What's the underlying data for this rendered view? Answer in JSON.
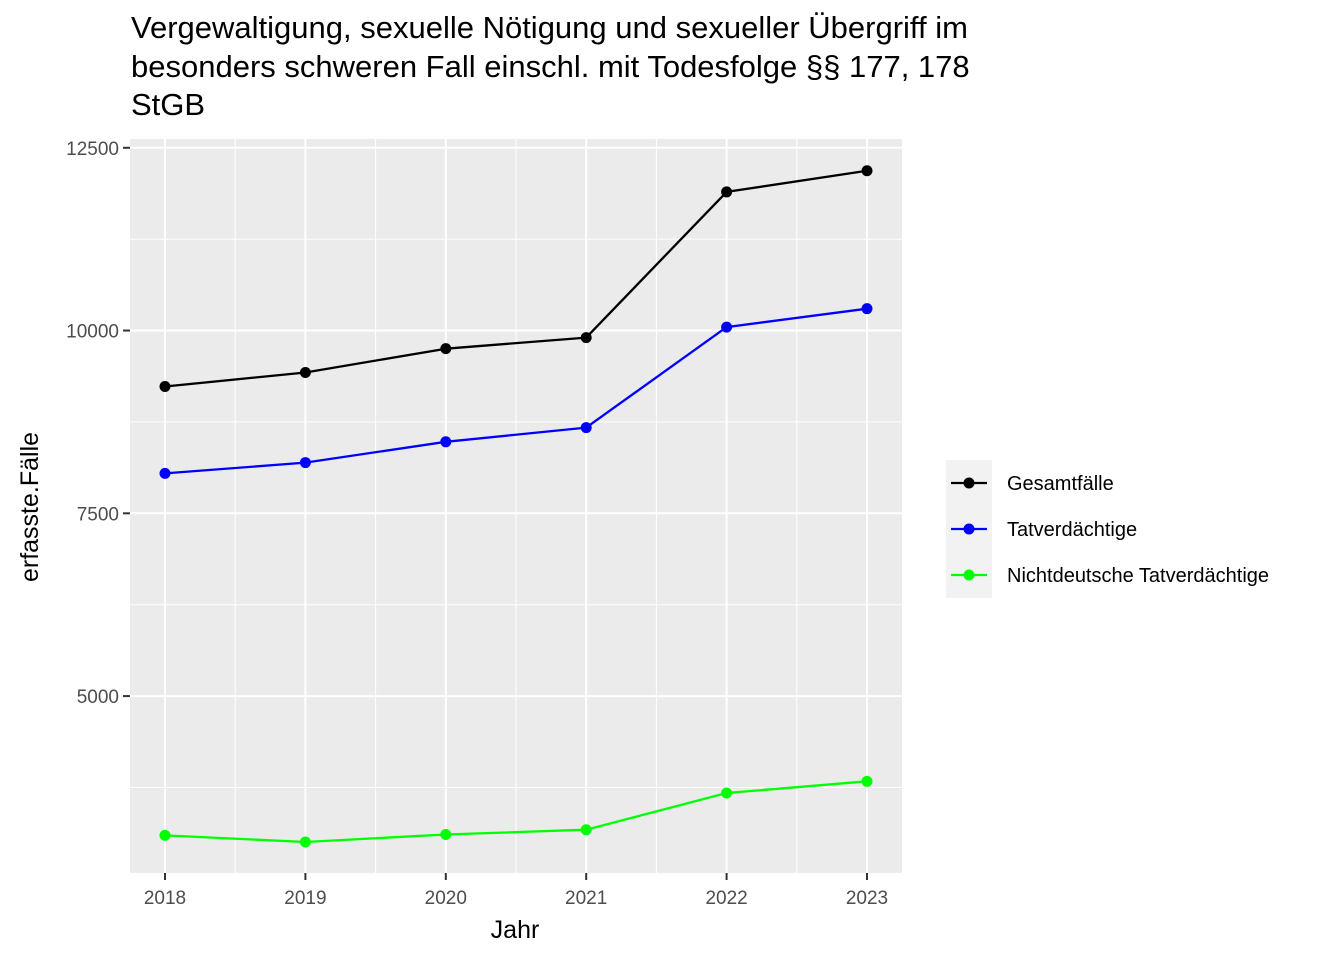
{
  "chart_data": {
    "type": "line",
    "title_lines": [
      "Vergewaltigung, sexuelle Nötigung und sexueller Übergriff im",
      "besonders schweren Fall einschl. mit Todesfolge §§ 177, 178",
      "StGB"
    ],
    "xlabel": "Jahr",
    "ylabel": "erfasste.Fälle",
    "x": [
      "2018",
      "2019",
      "2020",
      "2021",
      "2022",
      "2023"
    ],
    "x_ticks": [
      "2018",
      "2019",
      "2020",
      "2021",
      "2022",
      "2023"
    ],
    "y_ticks": [
      5000,
      7500,
      10000,
      12500
    ],
    "y_tick_labels": [
      "5000",
      "7500",
      "10000",
      "12500"
    ],
    "ylim": [
      2580,
      12620
    ],
    "grid": true,
    "legend_position": "right",
    "series": [
      {
        "name": "Gesamtfälle",
        "color": "#000000",
        "values": [
          9234,
          9426,
          9752,
          9903,
          11896,
          12186
        ]
      },
      {
        "name": "Tatverdächtige",
        "color": "#0000ff",
        "values": [
          8046,
          8194,
          8478,
          8672,
          10047,
          10299
        ]
      },
      {
        "name": "Nichtdeutsche Tatverdächtige",
        "color": "#00ff00",
        "values": [
          3094,
          3004,
          3107,
          3172,
          3674,
          3834
        ]
      }
    ]
  }
}
